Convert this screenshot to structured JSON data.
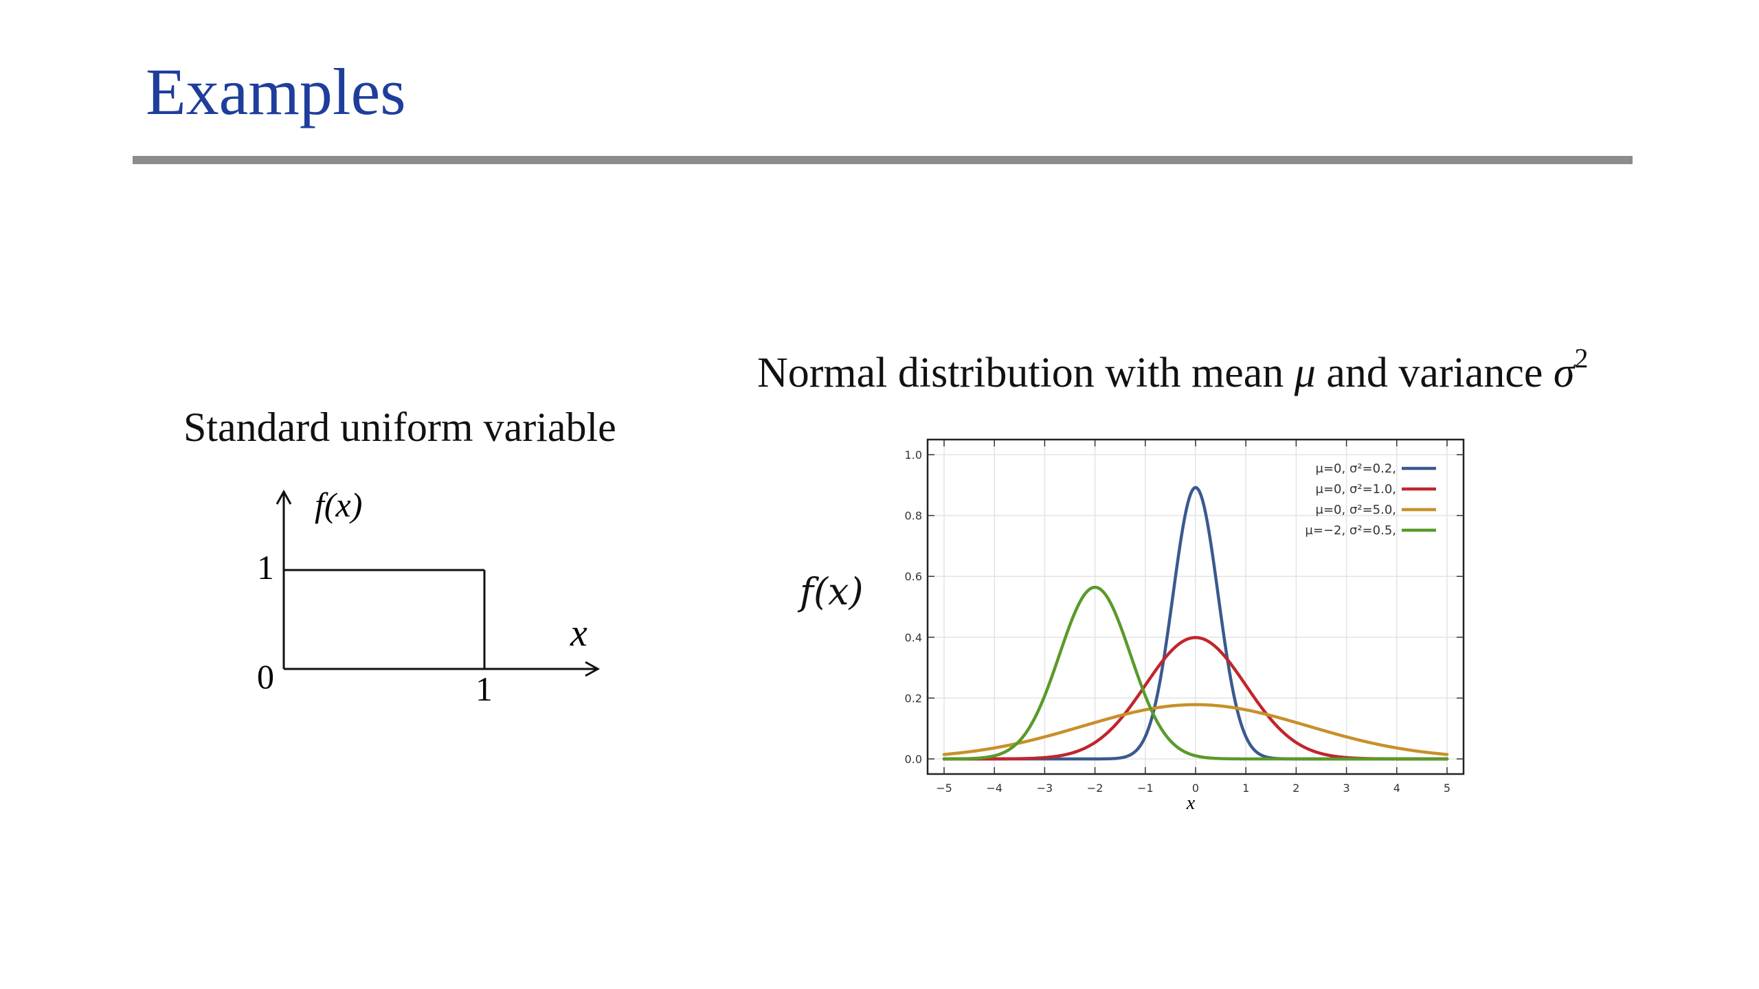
{
  "slide": {
    "title": "Examples"
  },
  "uniform": {
    "caption": "Standard uniform variable",
    "y_axis_label": "f(x)",
    "x_axis_label": "x",
    "tick_y_one": "1",
    "tick_origin": "0",
    "tick_x_one": "1"
  },
  "normal": {
    "caption_prefix": "Normal distribution with mean ",
    "mu_symbol": "μ",
    "caption_mid": " and variance ",
    "sigma_symbol": "σ",
    "sigma_exp": "2",
    "y_axis_label": "f(x)"
  },
  "chart_data": {
    "type": "line",
    "title": "",
    "xlabel": "x",
    "ylabel": "",
    "xlim": [
      -5,
      5
    ],
    "ylim": [
      0,
      1.0
    ],
    "x_ticks": [
      "−5",
      "−4",
      "−3",
      "−2",
      "−1",
      "0",
      "1",
      "2",
      "3",
      "4",
      "5"
    ],
    "y_ticks": [
      "0.0",
      "0.2",
      "0.4",
      "0.6",
      "0.8",
      "1.0"
    ],
    "grid": true,
    "legend_position": "top-right",
    "series": [
      {
        "name": "μ=0,   σ²=0.2,",
        "mu": 0,
        "variance": 0.2,
        "color": "#3a5a8e",
        "x": [
          -5,
          -2,
          -1.5,
          -1,
          -0.75,
          -0.5,
          -0.25,
          0,
          0.25,
          0.5,
          0.75,
          1,
          1.5,
          2,
          5
        ],
        "y": [
          0.0,
          0.0,
          0.0033,
          0.0739,
          0.2148,
          0.4566,
          0.7493,
          0.8921,
          0.7493,
          0.4566,
          0.2148,
          0.0739,
          0.0033,
          0.0,
          0.0
        ]
      },
      {
        "name": "μ=0,   σ²=1.0,",
        "mu": 0,
        "variance": 1.0,
        "color": "#c0262d",
        "x": [
          -5,
          -4,
          -3,
          -2.5,
          -2,
          -1.5,
          -1,
          -0.5,
          0,
          0.5,
          1,
          1.5,
          2,
          2.5,
          3,
          4,
          5
        ],
        "y": [
          0.0,
          0.0001,
          0.0044,
          0.0175,
          0.054,
          0.1295,
          0.242,
          0.3521,
          0.3989,
          0.3521,
          0.242,
          0.1295,
          0.054,
          0.0175,
          0.0044,
          0.0001,
          0.0
        ]
      },
      {
        "name": "μ=0,   σ²=5.0,",
        "mu": 0,
        "variance": 5.0,
        "color": "#c8902a",
        "x": [
          -5,
          -4,
          -3,
          -2,
          -1,
          0,
          1,
          2,
          3,
          4,
          5
        ],
        "y": [
          0.0146,
          0.0361,
          0.0725,
          0.1196,
          0.1614,
          0.1784,
          0.1614,
          0.1196,
          0.0725,
          0.0361,
          0.0146
        ]
      },
      {
        "name": "μ=−2, σ²=0.5,",
        "mu": -2,
        "variance": 0.5,
        "color": "#5a9a2a",
        "x": [
          -5,
          -4.5,
          -4,
          -3.5,
          -3,
          -2.5,
          -2,
          -1.5,
          -1,
          -0.5,
          0,
          0.5,
          1,
          5
        ],
        "y": [
          0.0,
          0.0011,
          0.0103,
          0.0596,
          0.2076,
          0.4393,
          0.5642,
          0.4393,
          0.2076,
          0.0596,
          0.0103,
          0.0011,
          0.0,
          0.0
        ]
      }
    ]
  }
}
